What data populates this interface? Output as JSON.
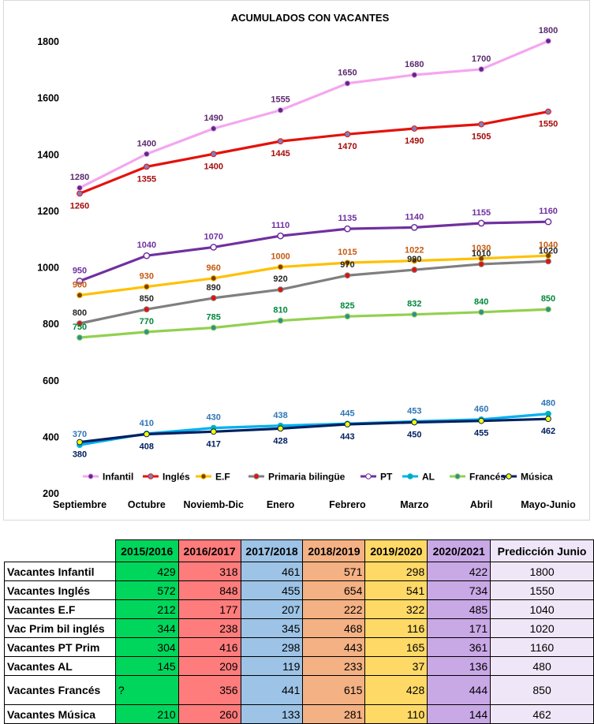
{
  "chart_data": {
    "type": "line",
    "title": "ACUMULADOS CON VACANTES",
    "categories": [
      "Septiembre",
      "Octubre",
      "Noviemb-Dic",
      "Enero",
      "Febrero",
      "Marzo",
      "Abril",
      "Mayo-Junio"
    ],
    "ylim": [
      200,
      1800
    ],
    "yticks": [
      200,
      400,
      600,
      800,
      1000,
      1200,
      1400,
      1600,
      1800
    ],
    "grid": false,
    "legend_position": "bottom",
    "series": [
      {
        "name": "Infantil",
        "values": [
          1280,
          1400,
          1490,
          1555,
          1650,
          1680,
          1700,
          1800
        ],
        "color": "#f4a6f0",
        "marker": "#5b2a86",
        "label_color": "#5b2a6e",
        "labels_below": false,
        "hollow": false
      },
      {
        "name": "Inglés",
        "values": [
          1260,
          1355,
          1400,
          1445,
          1470,
          1490,
          1505,
          1550
        ],
        "color": "#e3120b",
        "marker": "#7f7fbf",
        "label_color": "#a50b0b",
        "labels_below": true,
        "hollow": false
      },
      {
        "name": "E.F",
        "values": [
          900,
          930,
          960,
          1000,
          1015,
          1022,
          1030,
          1040
        ],
        "color": "#ffc000",
        "marker": "#7f3f00",
        "label_color": "#c55a11",
        "labels_below": false,
        "hollow": false
      },
      {
        "name": "Primaria bilingüe",
        "values": [
          800,
          850,
          890,
          920,
          970,
          990,
          1010,
          1020
        ],
        "color": "#7f7f7f",
        "marker": "#e3120b",
        "label_color": "#262626",
        "labels_below": false,
        "hollow": false
      },
      {
        "name": "PT",
        "values": [
          950,
          1040,
          1070,
          1110,
          1135,
          1140,
          1155,
          1160
        ],
        "color": "#7030a0",
        "marker": "#ffffff",
        "label_color": "#7030a0",
        "labels_below": false,
        "hollow": true
      },
      {
        "name": "AL",
        "values": [
          370,
          410,
          430,
          438,
          445,
          453,
          460,
          480
        ],
        "color": "#00b0f0",
        "marker": "#00b0a0",
        "label_color": "#2e75b6",
        "labels_below": false,
        "hollow": false
      },
      {
        "name": "Francés",
        "values": [
          750,
          770,
          785,
          810,
          825,
          832,
          840,
          850
        ],
        "color": "#92d050",
        "marker": "#2f8f8f",
        "label_color": "#00873c",
        "labels_below": false,
        "hollow": false
      },
      {
        "name": "Música",
        "values": [
          380,
          408,
          417,
          428,
          443,
          450,
          455,
          462
        ],
        "color": "#002060",
        "marker": "#ffff00",
        "label_color": "#002060",
        "labels_below": true,
        "hollow": false
      }
    ]
  },
  "table": {
    "corner": "",
    "headers": [
      "2015/2016",
      "2016/2017",
      "2017/2018",
      "2018/2019",
      "2019/2020",
      "2020/2021",
      "Predicción Junio"
    ],
    "rows": [
      {
        "label": "Vacantes Infantil",
        "values": [
          "429",
          "318",
          "461",
          "571",
          "298",
          "422",
          "1800"
        ]
      },
      {
        "label": "Vacantes Inglés",
        "values": [
          "572",
          "848",
          "455",
          "654",
          "541",
          "734",
          "1550"
        ]
      },
      {
        "label": "Vacantes E.F",
        "values": [
          "212",
          "177",
          "207",
          "222",
          "322",
          "485",
          "1040"
        ]
      },
      {
        "label": "Vac Prim bil inglés",
        "values": [
          "344",
          "238",
          "345",
          "468",
          "116",
          "171",
          "1020"
        ]
      },
      {
        "label": "Vacantes PT Prim",
        "values": [
          "304",
          "416",
          "298",
          "443",
          "165",
          "361",
          "1160"
        ]
      },
      {
        "label": "Vacantes AL",
        "values": [
          "145",
          "209",
          "119",
          "233",
          "37",
          "136",
          "480"
        ]
      },
      {
        "label": "Vacantes Francés",
        "values": [
          "?",
          "356",
          "441",
          "615",
          "428",
          "444",
          "850"
        ]
      },
      {
        "label": "Vacantes Música",
        "values": [
          "210",
          "260",
          "133",
          "281",
          "110",
          "144",
          "462"
        ]
      }
    ]
  }
}
